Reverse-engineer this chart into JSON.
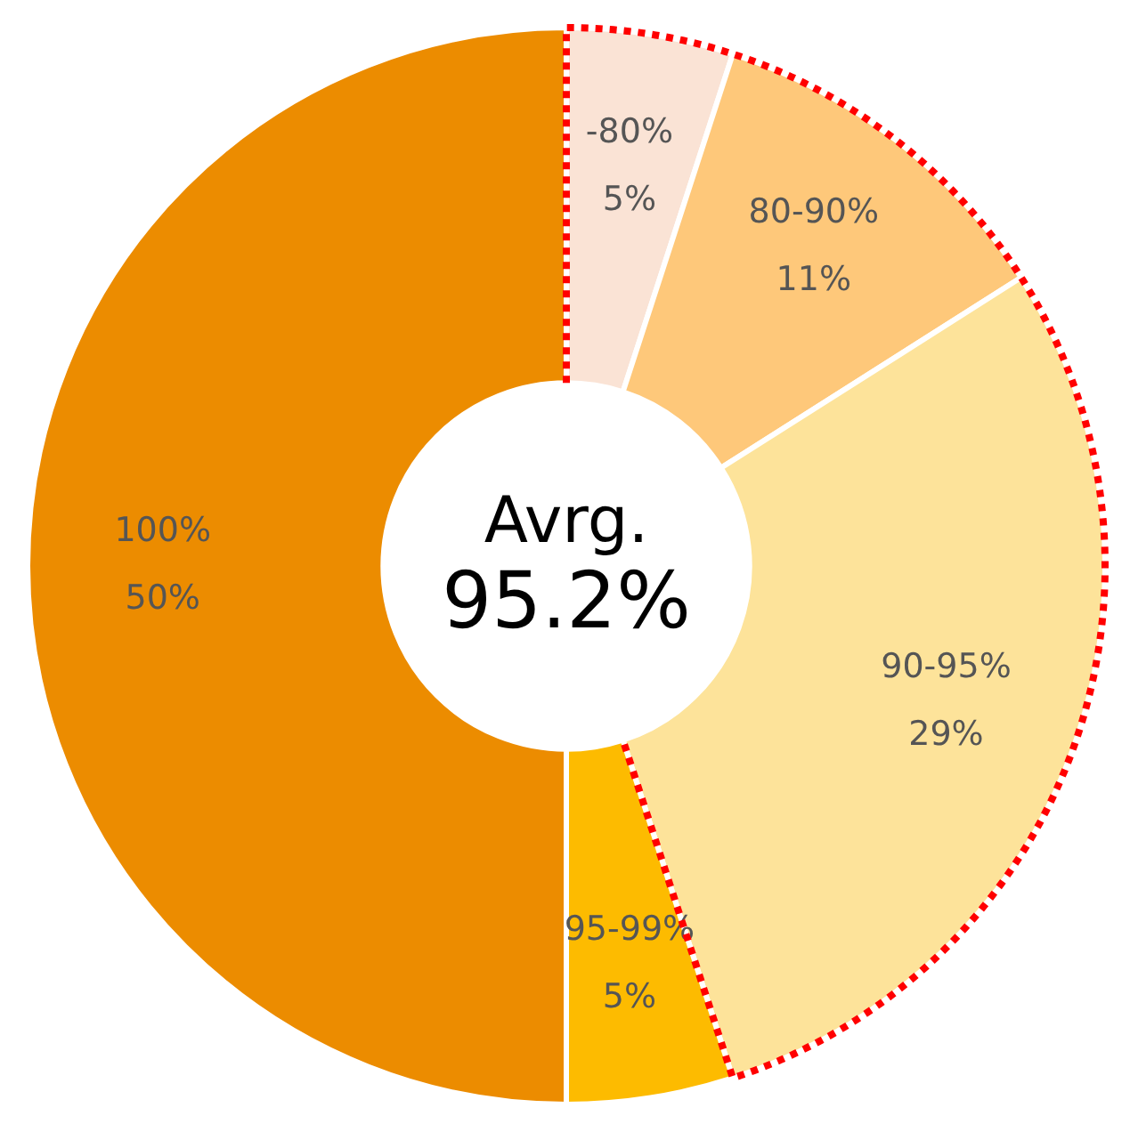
{
  "chart_data": {
    "type": "donut",
    "categories": [
      "-80%",
      "80-90%",
      "90-95%",
      "95-99%",
      "100%"
    ],
    "values": [
      5,
      11,
      29,
      5,
      50
    ],
    "value_labels": [
      "5%",
      "11%",
      "29%",
      "5%",
      "50%"
    ],
    "colors": [
      "#fae3d5",
      "#fec87a",
      "#fde39a",
      "#fdbb00",
      "#ec8c00"
    ],
    "annotations": [
      "Avrg.",
      "95.2%"
    ]
  }
}
